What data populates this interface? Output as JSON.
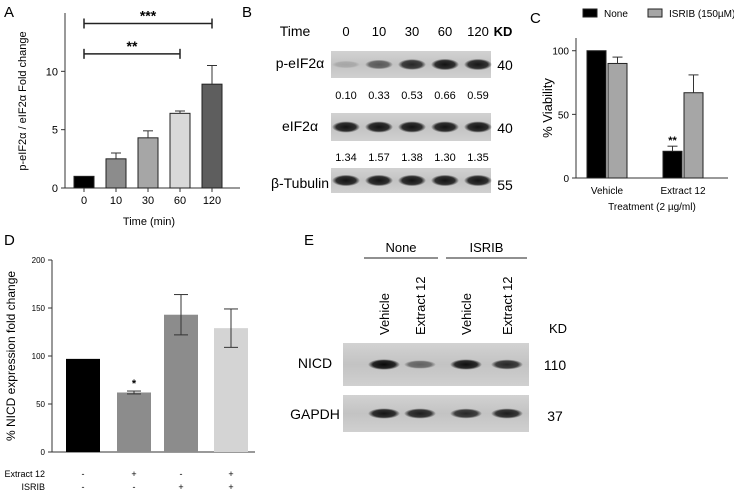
{
  "panels": [
    {
      "label": "A",
      "chart_data": {
        "type": "bar",
        "categories": [
          "0",
          "10",
          "30",
          "60",
          "120"
        ],
        "values": [
          1.0,
          2.5,
          4.3,
          6.4,
          8.9
        ],
        "errors": [
          0.0,
          0.5,
          0.6,
          0.2,
          1.6
        ],
        "colors": [
          "#000000",
          "#8c8c8c",
          "#a6a6a6",
          "#d9d9d9",
          "#5e5e5e"
        ],
        "xlabel": "Time (min)",
        "ylabel": "p-eIF2α / eIF2α Fold change",
        "ylim": [
          0,
          15
        ],
        "yticks": [
          0,
          5,
          10
        ],
        "significance": [
          {
            "from": "0",
            "to": "120",
            "label": "***",
            "y": 14.1
          },
          {
            "from": "0",
            "to": "60",
            "label": "**",
            "y": 11.5
          }
        ]
      }
    },
    {
      "label": "B",
      "blot": {
        "time_label": "Time",
        "times": [
          "0",
          "10",
          "30",
          "60",
          "120"
        ],
        "kd_label": "KD",
        "rows": [
          {
            "name": "p-eIF2α",
            "kd": "40",
            "intensities": [
              0.15,
              0.55,
              0.8,
              0.9,
              0.88
            ]
          },
          {
            "name": "eIF2α",
            "kd": "40",
            "intensities": [
              0.9,
              0.9,
              0.9,
              0.9,
              0.9
            ]
          },
          {
            "name": "β-Tubulin",
            "kd": "55",
            "intensities": [
              0.9,
              0.9,
              0.9,
              0.9,
              0.9
            ]
          }
        ],
        "ratios_1": [
          "0.10",
          "0.33",
          "0.53",
          "0.66",
          "0.59"
        ],
        "ratios_2": [
          "1.34",
          "1.57",
          "1.38",
          "1.30",
          "1.35"
        ]
      }
    },
    {
      "label": "C",
      "chart_data": {
        "type": "bar",
        "categories": [
          "Vehicle",
          "Extract 12"
        ],
        "series": [
          {
            "name": "None",
            "values": [
              100,
              21
            ],
            "errors": [
              0,
              4
            ],
            "color": "#000000"
          },
          {
            "name": "ISRIB (150µM)",
            "values": [
              90,
              67
            ],
            "errors": [
              5,
              14
            ],
            "color": "#a6a6a6"
          }
        ],
        "xlabel": "Treatment (2 µg/ml)",
        "ylabel": "% Viability",
        "ylim": [
          0,
          110
        ],
        "yticks": [
          0,
          50,
          100
        ],
        "legend": "top",
        "significance": [
          {
            "category": "Extract 12",
            "series": "None",
            "label": "**"
          }
        ]
      }
    },
    {
      "label": "D",
      "chart_data": {
        "type": "bar",
        "categories": [
          "1",
          "2",
          "3",
          "4"
        ],
        "values": [
          97,
          62,
          143,
          129
        ],
        "errors": [
          0,
          1.5,
          21,
          20
        ],
        "colors": [
          "#000000",
          "#8c8c8c",
          "#8c8c8c",
          "#d4d4d4"
        ],
        "ylabel": "% NICD expression fold change",
        "ylim": [
          0,
          200
        ],
        "yticks": [
          0,
          50,
          100,
          150,
          200
        ],
        "treatment_rows": [
          {
            "name": "Extract 12",
            "signs": [
              "-",
              "+",
              "-",
              "+"
            ]
          },
          {
            "name": "ISRIB",
            "signs": [
              "-",
              "-",
              "+",
              "+"
            ]
          }
        ],
        "significance": [
          {
            "category": "2",
            "label": "*"
          }
        ]
      }
    },
    {
      "label": "E",
      "blot": {
        "groups": [
          "None",
          "ISRIB"
        ],
        "lanes": [
          "Vehicle",
          "Extract 12",
          "Vehicle",
          "Extract 12"
        ],
        "kd_label": "KD",
        "rows": [
          {
            "name": "NICD",
            "kd": "110",
            "intensities": [
              0.95,
              0.5,
              0.92,
              0.8
            ]
          },
          {
            "name": "GAPDH",
            "kd": "37",
            "intensities": [
              0.9,
              0.85,
              0.8,
              0.85
            ]
          }
        ]
      }
    }
  ]
}
